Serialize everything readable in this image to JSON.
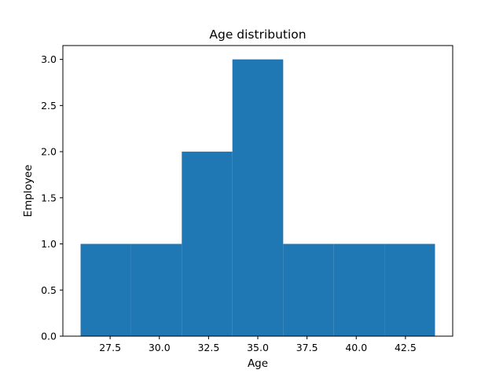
{
  "chart_data": {
    "type": "bar",
    "title": "Age distribution",
    "xlabel": "Age",
    "ylabel": "Employee",
    "bins": [
      {
        "x0": 26.0,
        "x1": 28.57,
        "value": 1
      },
      {
        "x0": 28.57,
        "x1": 31.14,
        "value": 1
      },
      {
        "x0": 31.14,
        "x1": 33.71,
        "value": 2
      },
      {
        "x0": 33.71,
        "x1": 36.29,
        "value": 3
      },
      {
        "x0": 36.29,
        "x1": 38.86,
        "value": 1
      },
      {
        "x0": 38.86,
        "x1": 41.43,
        "value": 1
      },
      {
        "x0": 41.43,
        "x1": 44.0,
        "value": 1
      }
    ],
    "xlim": [
      25.1,
      44.9
    ],
    "ylim": [
      0,
      3.15
    ],
    "xticks": [
      27.5,
      30.0,
      32.5,
      35.0,
      37.5,
      40.0,
      42.5
    ],
    "xtick_labels": [
      "27.5",
      "30.0",
      "32.5",
      "35.0",
      "37.5",
      "40.0",
      "42.5"
    ],
    "yticks": [
      0,
      0.5,
      1.0,
      1.5,
      2.0,
      2.5,
      3.0
    ],
    "ytick_labels": [
      "0.0",
      "0.5",
      "1.0",
      "1.5",
      "2.0",
      "2.5",
      "3.0"
    ],
    "grid": false,
    "bar_color": "#1f77b4"
  }
}
